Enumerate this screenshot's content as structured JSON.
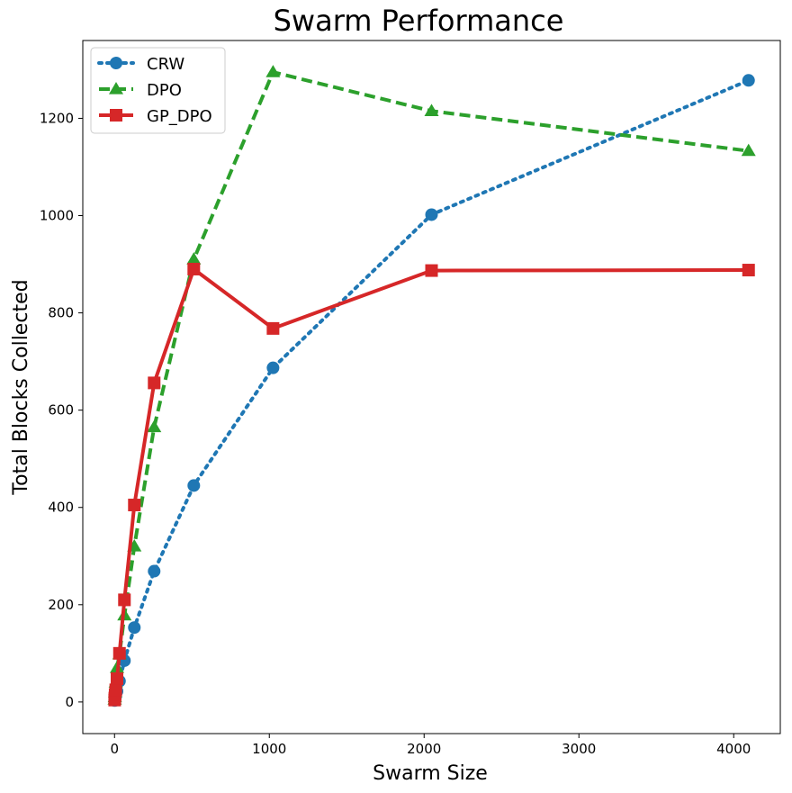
{
  "chart_data": {
    "type": "line",
    "title": "Swarm Performance",
    "xlabel": "Swarm Size",
    "ylabel": "Total Blocks Collected",
    "xlim": [
      -205,
      4301
    ],
    "ylim": [
      -65,
      1360
    ],
    "xticks": [
      0,
      1000,
      2000,
      3000,
      4000
    ],
    "yticks": [
      0,
      200,
      400,
      600,
      800,
      1000,
      1200
    ],
    "grid": false,
    "legend_position": "top-left",
    "x": [
      1,
      2,
      4,
      8,
      16,
      32,
      64,
      128,
      256,
      512,
      1024,
      2048,
      4096
    ],
    "series": [
      {
        "name": "CRW",
        "color": "#1f77b4",
        "linestyle": "dotted",
        "marker": "circle",
        "values": [
          3,
          5,
          8,
          12,
          22,
          43,
          85,
          153,
          269,
          445,
          687,
          1002,
          1278
        ]
      },
      {
        "name": "DPO",
        "color": "#2ca02c",
        "linestyle": "dashed",
        "marker": "triangle",
        "values": [
          5,
          10,
          20,
          40,
          70,
          98,
          178,
          320,
          565,
          910,
          1295,
          1215,
          1133
        ]
      },
      {
        "name": "GP_DPO",
        "color": "#d62728",
        "linestyle": "solid",
        "marker": "square",
        "values": [
          4,
          8,
          15,
          25,
          48,
          100,
          210,
          405,
          656,
          890,
          768,
          887,
          888
        ]
      }
    ]
  }
}
